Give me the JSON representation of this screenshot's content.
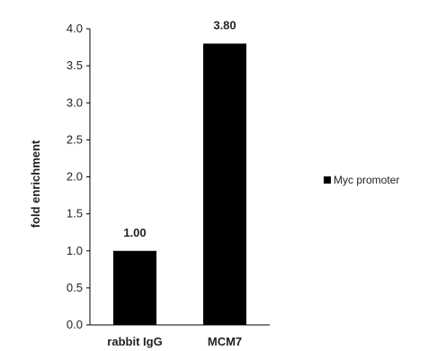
{
  "chart_data": {
    "type": "bar",
    "categories": [
      "rabbit IgG",
      "MCM7"
    ],
    "series": [
      {
        "name": "Myc promoter",
        "values": [
          1.0,
          3.8
        ],
        "labels": [
          "1.00",
          "3.80"
        ],
        "color": "#000000"
      }
    ],
    "ylabel": "fold enrichment",
    "xlabel": "",
    "ylim": [
      0,
      4.0
    ],
    "yticks": [
      "0.0",
      "0.5",
      "1.0",
      "1.5",
      "2.0",
      "2.5",
      "3.0",
      "3.5",
      "4.0"
    ],
    "grid": false,
    "legend_position": "right"
  }
}
